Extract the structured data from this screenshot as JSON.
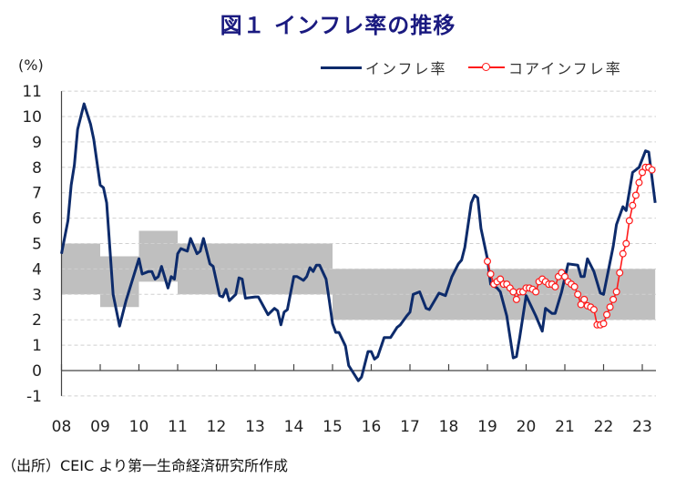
{
  "title": "図１ インフレ率の推移",
  "unit_label": "(%)",
  "source": "（出所）CEIC より第一生命経済研究所作成",
  "colors": {
    "inflation": "#0d2b6b",
    "core": "#ff1a1a",
    "band": "#bfbfbf",
    "title": "#1a1a80",
    "negative_tick": "#ff0000"
  },
  "chart_data": {
    "type": "line",
    "title": "図１ インフレ率の推移",
    "ylabel": "(%)",
    "xlabel": "",
    "ylim": [
      -1,
      11
    ],
    "yticks": [
      "11",
      "10",
      "9",
      "8",
      "7",
      "6",
      "5",
      "4",
      "3",
      "2",
      "1",
      "0",
      "-1"
    ],
    "xticks": [
      "08",
      "09",
      "10",
      "11",
      "12",
      "13",
      "14",
      "15",
      "16",
      "17",
      "18",
      "19",
      "20",
      "21",
      "22",
      "23"
    ],
    "grid": true,
    "legend_position": "top-right",
    "target_band": [
      {
        "start": "2008-01",
        "end": "2008-12",
        "low": 3,
        "high": 5
      },
      {
        "start": "2009-01",
        "end": "2009-12",
        "low": 2.5,
        "high": 4.5
      },
      {
        "start": "2010-01",
        "end": "2010-12",
        "low": 3.5,
        "high": 5.5
      },
      {
        "start": "2011-01",
        "end": "2014-12",
        "low": 3,
        "high": 5
      },
      {
        "start": "2015-01",
        "end": "2023-04",
        "low": 2,
        "high": 4
      }
    ],
    "series": [
      {
        "name": "インフレ率",
        "points": [
          [
            "2008-01",
            4.6
          ],
          [
            "2008-03",
            5.9
          ],
          [
            "2008-04",
            7.3
          ],
          [
            "2008-05",
            8.1
          ],
          [
            "2008-06",
            9.5
          ],
          [
            "2008-08",
            10.5
          ],
          [
            "2008-10",
            9.7
          ],
          [
            "2008-11",
            9.1
          ],
          [
            "2009-01",
            7.3
          ],
          [
            "2009-02",
            7.2
          ],
          [
            "2009-03",
            6.6
          ],
          [
            "2009-04",
            4.8
          ],
          [
            "2009-05",
            3.0
          ],
          [
            "2009-07",
            1.75
          ],
          [
            "2009-09",
            2.75
          ],
          [
            "2010-01",
            4.4
          ],
          [
            "2010-02",
            3.8
          ],
          [
            "2010-04",
            3.9
          ],
          [
            "2010-05",
            3.9
          ],
          [
            "2010-06",
            3.6
          ],
          [
            "2010-07",
            3.7
          ],
          [
            "2010-08",
            4.1
          ],
          [
            "2010-10",
            3.25
          ],
          [
            "2010-11",
            3.7
          ],
          [
            "2010-12",
            3.6
          ],
          [
            "2011-01",
            4.6
          ],
          [
            "2011-02",
            4.8
          ],
          [
            "2011-04",
            4.7
          ],
          [
            "2011-05",
            5.2
          ],
          [
            "2011-07",
            4.6
          ],
          [
            "2011-08",
            4.7
          ],
          [
            "2011-09",
            5.2
          ],
          [
            "2011-11",
            4.2
          ],
          [
            "2011-12",
            4.1
          ],
          [
            "2012-02",
            2.95
          ],
          [
            "2012-03",
            2.9
          ],
          [
            "2012-04",
            3.2
          ],
          [
            "2012-05",
            2.75
          ],
          [
            "2012-07",
            3.0
          ],
          [
            "2012-08",
            3.65
          ],
          [
            "2012-09",
            3.6
          ],
          [
            "2012-10",
            2.85
          ],
          [
            "2013-01",
            2.9
          ],
          [
            "2013-02",
            2.9
          ],
          [
            "2013-05",
            2.2
          ],
          [
            "2013-07",
            2.45
          ],
          [
            "2013-08",
            2.35
          ],
          [
            "2013-09",
            1.8
          ],
          [
            "2013-10",
            2.3
          ],
          [
            "2013-11",
            2.4
          ],
          [
            "2014-01",
            3.7
          ],
          [
            "2014-02",
            3.7
          ],
          [
            "2014-04",
            3.55
          ],
          [
            "2014-05",
            3.7
          ],
          [
            "2014-06",
            4.05
          ],
          [
            "2014-07",
            3.9
          ],
          [
            "2014-08",
            4.15
          ],
          [
            "2014-09",
            4.15
          ],
          [
            "2014-11",
            3.6
          ],
          [
            "2014-12",
            2.75
          ],
          [
            "2015-01",
            1.85
          ],
          [
            "2015-02",
            1.5
          ],
          [
            "2015-03",
            1.5
          ],
          [
            "2015-05",
            0.97
          ],
          [
            "2015-06",
            0.2
          ],
          [
            "2015-07",
            0.0
          ],
          [
            "2015-09",
            -0.4
          ],
          [
            "2015-10",
            -0.25
          ],
          [
            "2015-12",
            0.75
          ],
          [
            "2016-01",
            0.75
          ],
          [
            "2016-02",
            0.45
          ],
          [
            "2016-03",
            0.55
          ],
          [
            "2016-05",
            1.3
          ],
          [
            "2016-07",
            1.3
          ],
          [
            "2016-09",
            1.7
          ],
          [
            "2016-10",
            1.8
          ],
          [
            "2016-12",
            2.15
          ],
          [
            "2017-01",
            2.3
          ],
          [
            "2017-02",
            3.0
          ],
          [
            "2017-04",
            3.1
          ],
          [
            "2017-06",
            2.45
          ],
          [
            "2017-07",
            2.4
          ],
          [
            "2017-10",
            3.05
          ],
          [
            "2017-11",
            3.0
          ],
          [
            "2017-12",
            2.95
          ],
          [
            "2018-02",
            3.7
          ],
          [
            "2018-04",
            4.2
          ],
          [
            "2018-05",
            4.35
          ],
          [
            "2018-06",
            4.85
          ],
          [
            "2018-08",
            6.6
          ],
          [
            "2018-09",
            6.9
          ],
          [
            "2018-10",
            6.8
          ],
          [
            "2018-11",
            5.6
          ],
          [
            "2019-01",
            4.4
          ],
          [
            "2019-02",
            3.4
          ],
          [
            "2019-04",
            3.25
          ],
          [
            "2019-05",
            3.1
          ],
          [
            "2019-07",
            2.15
          ],
          [
            "2019-09",
            0.5
          ],
          [
            "2019-10",
            0.55
          ],
          [
            "2019-11",
            1.3
          ],
          [
            "2020-01",
            2.95
          ],
          [
            "2020-04",
            2.15
          ],
          [
            "2020-06",
            1.55
          ],
          [
            "2020-07",
            2.45
          ],
          [
            "2020-09",
            2.25
          ],
          [
            "2020-10",
            2.25
          ],
          [
            "2020-12",
            3.1
          ],
          [
            "2021-02",
            4.2
          ],
          [
            "2021-05",
            4.15
          ],
          [
            "2021-06",
            3.7
          ],
          [
            "2021-07",
            3.7
          ],
          [
            "2021-08",
            4.4
          ],
          [
            "2021-10",
            3.9
          ],
          [
            "2021-12",
            3.05
          ],
          [
            "2022-01",
            3.0
          ],
          [
            "2022-04",
            4.9
          ],
          [
            "2022-05",
            5.75
          ],
          [
            "2022-07",
            6.45
          ],
          [
            "2022-08",
            6.3
          ],
          [
            "2022-10",
            7.8
          ],
          [
            "2022-12",
            8.0
          ],
          [
            "2023-02",
            8.65
          ],
          [
            "2023-03",
            8.6
          ],
          [
            "2023-05",
            6.6
          ]
        ]
      },
      {
        "name": "コアインフレ率",
        "points": [
          [
            "2019-01",
            4.3
          ],
          [
            "2019-02",
            3.8
          ],
          [
            "2019-03",
            3.4
          ],
          [
            "2019-04",
            3.5
          ],
          [
            "2019-05",
            3.6
          ],
          [
            "2019-06",
            3.4
          ],
          [
            "2019-07",
            3.4
          ],
          [
            "2019-08",
            3.25
          ],
          [
            "2019-09",
            3.1
          ],
          [
            "2019-10",
            2.8
          ],
          [
            "2019-11",
            3.1
          ],
          [
            "2019-12",
            3.1
          ],
          [
            "2020-01",
            3.25
          ],
          [
            "2020-02",
            3.25
          ],
          [
            "2020-03",
            3.2
          ],
          [
            "2020-04",
            3.1
          ],
          [
            "2020-05",
            3.5
          ],
          [
            "2020-06",
            3.6
          ],
          [
            "2020-07",
            3.5
          ],
          [
            "2020-08",
            3.4
          ],
          [
            "2020-09",
            3.4
          ],
          [
            "2020-10",
            3.3
          ],
          [
            "2020-11",
            3.7
          ],
          [
            "2020-12",
            3.85
          ],
          [
            "2021-01",
            3.7
          ],
          [
            "2021-02",
            3.5
          ],
          [
            "2021-03",
            3.4
          ],
          [
            "2021-04",
            3.3
          ],
          [
            "2021-05",
            3.0
          ],
          [
            "2021-06",
            2.6
          ],
          [
            "2021-07",
            2.8
          ],
          [
            "2021-08",
            2.55
          ],
          [
            "2021-09",
            2.5
          ],
          [
            "2021-10",
            2.4
          ],
          [
            "2021-11",
            1.8
          ],
          [
            "2021-12",
            1.8
          ],
          [
            "2022-01",
            1.85
          ],
          [
            "2022-02",
            2.2
          ],
          [
            "2022-03",
            2.5
          ],
          [
            "2022-04",
            2.8
          ],
          [
            "2022-05",
            3.1
          ],
          [
            "2022-06",
            3.85
          ],
          [
            "2022-07",
            4.6
          ],
          [
            "2022-08",
            5.0
          ],
          [
            "2022-09",
            5.9
          ],
          [
            "2022-10",
            6.5
          ],
          [
            "2022-11",
            6.9
          ],
          [
            "2022-12",
            7.4
          ],
          [
            "2023-01",
            7.8
          ],
          [
            "2023-02",
            8.0
          ],
          [
            "2023-03",
            8.0
          ],
          [
            "2023-04",
            7.9
          ]
        ]
      }
    ]
  }
}
